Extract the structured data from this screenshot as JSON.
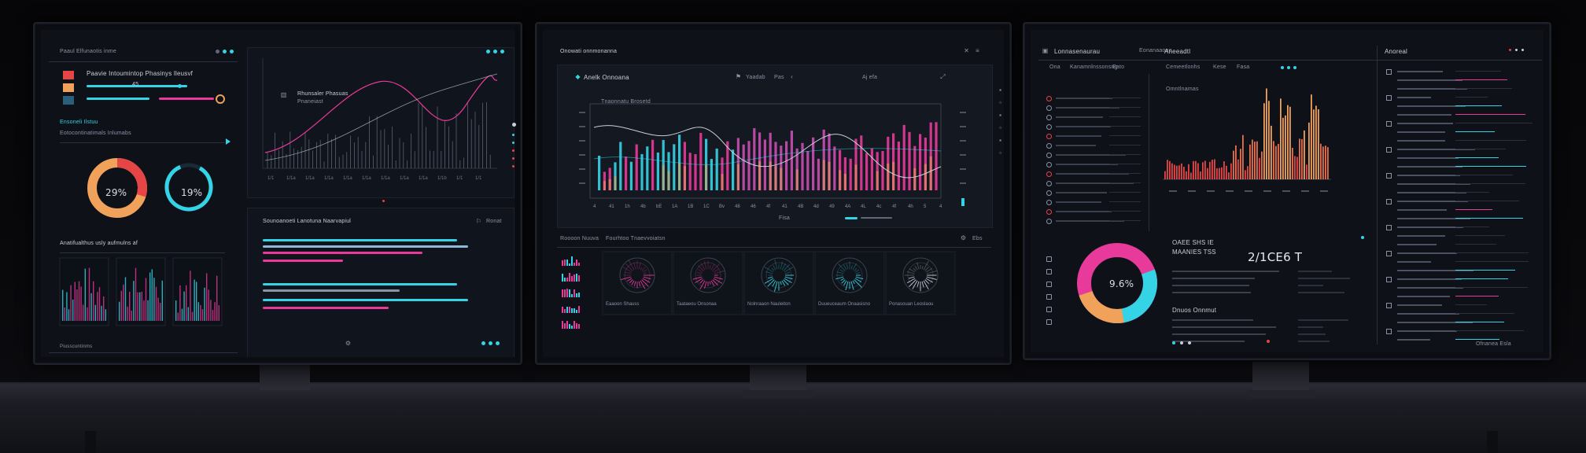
{
  "colors": {
    "accent_cyan": "#35d3e6",
    "accent_pink": "#e83a9a",
    "accent_orange": "#f0a15a",
    "accent_red": "#e64545",
    "panel_bg": "#10141c"
  },
  "left_monitor": {
    "header_title": "Paaul Elfunaotis inme",
    "legend_title": "Paavie Intoumintop Phasinys lleusvf",
    "legend_value_1": "45",
    "donut_left_value": "29%",
    "donut_right_value": "19%",
    "section_label": "Ensoneli Ilstuu",
    "section_sub": "Eotocontinatimals Inlumabs",
    "bars_title": "Sounoanoeti Lanotuna Naarvapiul",
    "bars_meta": "Ronat",
    "mini_title": "Anatifualthus usly aufmulns af",
    "chart_caption": "Rhunsaler Phasuas",
    "chart_badge": "Pnaneiast",
    "footer_text": "Piusscuntinms",
    "x_ticks": [
      "1/1",
      "1/1a",
      "1/1a",
      "1/1a",
      "1/1a",
      "1/1a",
      "1/1a",
      "1/1a",
      "1/1a",
      "1/1b",
      "1/1",
      "1/1"
    ]
  },
  "center_monitor": {
    "header_title": "Onowati onnmonanna",
    "toolbar_title": "Anelk Onnoana",
    "toolbar_item_1": "Yaadab",
    "toolbar_item_2": "Pas",
    "toolbar_item_3": "Aj efa",
    "chart_title": "Tnaonnatu Brosetd",
    "x_ticks": [
      "4",
      "41",
      "1h",
      "4b",
      "bE",
      "1A",
      "1B",
      "1C",
      "Bv",
      "48",
      "46",
      "4f",
      "41",
      "4B",
      "4d",
      "49",
      "4A",
      "4L",
      "4c",
      "4f",
      "4h",
      "5",
      "4"
    ],
    "legend_label": "Fisa",
    "bottom_section_title": "Roooon Nuuva",
    "bottom_section_sub": "Fourhtoo Tnaevvoiatsn",
    "bottom_meta": "Ebs",
    "gauge_captions": [
      "Eaaoon Shauss",
      "Taataeou Onsonaa",
      "Nolnraaon Nauleiton",
      "Duueuceaum Onaasisno",
      "Ponasouan Leoslaou"
    ]
  },
  "right_monitor": {
    "header_title": "Lonnasenaurau",
    "header_item_2": "Eonanaaone",
    "header_item_3": "Aneeadtl",
    "tab_1": "Ona",
    "tab_2": "Kanamnlnssonsng",
    "tab_3": "Eato",
    "chart_header_1": "Cemeetlonhs",
    "chart_header_2": "Kese",
    "chart_header_3": "Fasa",
    "chart_caption": "Omntlnamas",
    "metric_label": "OAEE SHS IE",
    "metric_sub": "MAANIES TSS",
    "metric_big": "2/1CE6 T",
    "donut_value": "9.6%",
    "notes_title": "Dnuos Onnmut",
    "side_title": "Anoreal",
    "footer_text": "Ofnanea Esla"
  }
}
